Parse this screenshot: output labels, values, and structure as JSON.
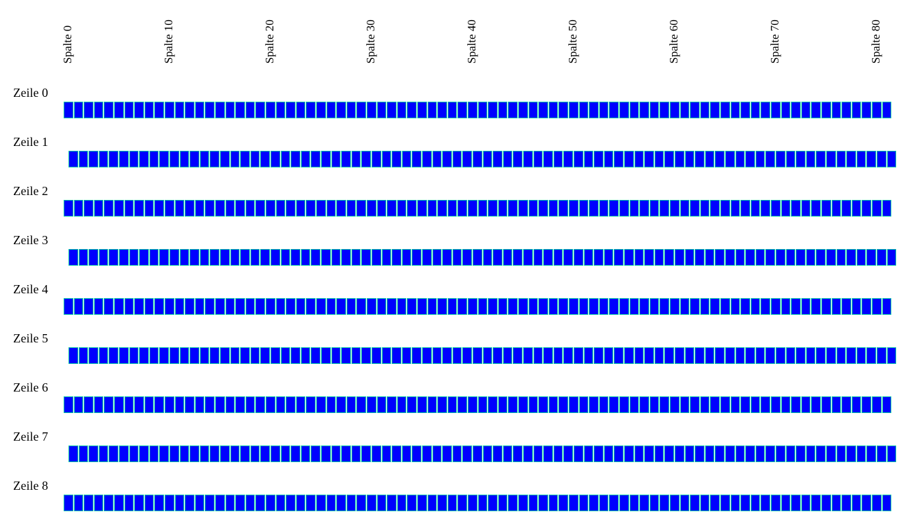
{
  "grid": {
    "columns": 82,
    "cell_color": "#0000ff",
    "cell_border_color": "#00bfa5",
    "column_labels": [
      "Spalte 0",
      "Spalte 10",
      "Spalte 20",
      "Spalte 30",
      "Spalte 40",
      "Spalte 50",
      "Spalte 60",
      "Spalte 70",
      "Spalte 80"
    ],
    "row_labels": [
      "Zeile 0",
      "Zeile 1",
      "Zeile 2",
      "Zeile 3",
      "Zeile 4",
      "Zeile 5",
      "Zeile 6",
      "Zeile 7",
      "Zeile 8"
    ]
  }
}
